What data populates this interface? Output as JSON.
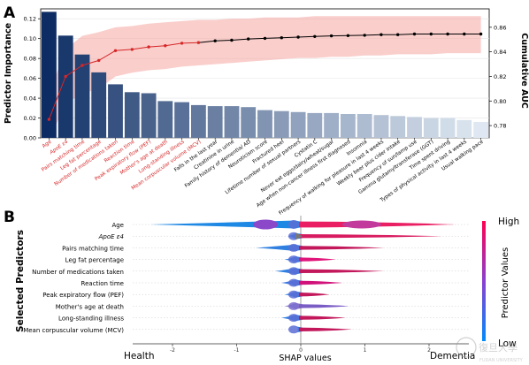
{
  "panel_a": {
    "label": "A",
    "ylabel_left": "Predictor Importance",
    "ylabel_right": "Cumulative AUC"
  },
  "panel_b": {
    "label": "B",
    "ylabel": "Selected Predictors",
    "xlabel": "SHAP values",
    "left_label": "Health",
    "right_label": "Dementia",
    "colorbar_label": "Predictor Values",
    "colorbar_high": "High",
    "colorbar_low": "Low"
  },
  "watermark": {
    "text_cn": "復旦大學",
    "text_en": "FUDAN UNIVERSITY"
  },
  "chart_data": [
    {
      "type": "bar",
      "panel": "A",
      "ylabel": "Predictor Importance",
      "ylim": [
        0,
        0.13
      ],
      "yticks": [
        0.0,
        0.02,
        0.04,
        0.06,
        0.08,
        0.1,
        0.12
      ],
      "ytick_labels": [
        "0.00",
        "0.02",
        "0.04",
        "0.06",
        "0.08",
        "0.10",
        "0.12"
      ],
      "grid": true,
      "categories": [
        "Age",
        "ApoE ε4",
        "Pairs matching time",
        "Leg fat percentage",
        "Number of medications taken",
        "Reaction time",
        "Peak expiratory flow (PEF)",
        "Mother's age at death",
        "Long-standing illness",
        "Mean corpuscular volume (MCV)",
        "Falls in the last year",
        "Creatinine in urine",
        "Family history of dementia/ AD",
        "Neuroticism score",
        "Fractured heel",
        "Lifetime number of sexual partners",
        "Cystatin C",
        "Never eat eggs/dairy/wheat/sugar",
        "Age when non-cancer illness first diagnosed",
        "Insomnia",
        "Frequency of walking for pleasure in last 4 weeks",
        "Weekly beer plus cider intake",
        "Frequency of sun/lamp use",
        "Gamma glutamyltransferase (GGT)",
        "Time spent driving",
        "Types of physical activity in last 4 weeks",
        "Usual walking pace"
      ],
      "highlighted_count": 10,
      "highlight_color": "#d62728",
      "values": [
        0.127,
        0.103,
        0.084,
        0.066,
        0.054,
        0.046,
        0.045,
        0.037,
        0.036,
        0.033,
        0.032,
        0.032,
        0.031,
        0.028,
        0.027,
        0.026,
        0.025,
        0.025,
        0.024,
        0.024,
        0.023,
        0.022,
        0.021,
        0.02,
        0.02,
        0.018,
        0.016
      ],
      "bar_color_dark": "#0c2c63",
      "bar_color_light": "#dfe8f2",
      "overlay": {
        "type": "line",
        "name": "Cumulative AUC",
        "axis": "right",
        "ylim": [
          0.77,
          0.875
        ],
        "yticks": [
          0.78,
          0.8,
          0.82,
          0.84,
          0.86
        ],
        "ytick_labels": [
          "0.78",
          "0.80",
          "0.82",
          "0.84",
          "0.86"
        ],
        "values": [
          0.785,
          0.82,
          0.829,
          0.833,
          0.841,
          0.842,
          0.844,
          0.845,
          0.847,
          0.8475,
          0.849,
          0.8495,
          0.8505,
          0.851,
          0.8515,
          0.852,
          0.8525,
          0.853,
          0.8532,
          0.8535,
          0.854,
          0.854,
          0.8545,
          0.8545,
          0.8545,
          0.8545,
          0.8545
        ],
        "upper": [
          0.806,
          0.842,
          0.853,
          0.856,
          0.86,
          0.861,
          0.863,
          0.864,
          0.865,
          0.866,
          0.866,
          0.867,
          0.867,
          0.868,
          0.868,
          0.868,
          0.869,
          0.869,
          0.869,
          0.869,
          0.869,
          0.869,
          0.869,
          0.869,
          0.869,
          0.869,
          0.869
        ],
        "lower": [
          0.768,
          0.798,
          0.806,
          0.81,
          0.82,
          0.823,
          0.825,
          0.826,
          0.828,
          0.829,
          0.83,
          0.831,
          0.832,
          0.833,
          0.834,
          0.835,
          0.835,
          0.836,
          0.836,
          0.837,
          0.837,
          0.838,
          0.838,
          0.838,
          0.839,
          0.839,
          0.839
        ],
        "line_color_highlighted": "#d62728",
        "line_color_rest": "#000000",
        "band_color": "#f4a6a0"
      }
    },
    {
      "type": "scatter",
      "panel": "B",
      "subtype": "shap_beeswarm",
      "xlabel": "SHAP values",
      "ylabel": "Selected Predictors",
      "xlim": [
        -2.5,
        2.55
      ],
      "xticks": [
        -2,
        -1,
        0,
        1,
        2
      ],
      "xtick_labels": [
        "-2",
        "-1",
        "0",
        "1",
        "2"
      ],
      "categories": [
        "Age",
        "ApoE ε4",
        "Pairs matching time",
        "Leg fat percentage",
        "Number of medications taken",
        "Reaction time",
        "Peak expiratory flow (PEF)",
        "Mother's age at death",
        "Long-standing illness",
        "Mean corpuscular volume (MCV)"
      ],
      "series": [
        {
          "name": "Age",
          "min": -2.35,
          "max": 2.4,
          "neg_color": "#1e88e5",
          "pos_color": "#e91e63"
        },
        {
          "name": "ApoE ε4",
          "min": -0.2,
          "max": 2.2,
          "neg_color": "#1e88e5",
          "pos_color": "#d81b60"
        },
        {
          "name": "Pairs matching time",
          "min": -0.7,
          "max": 1.3,
          "neg_color": "#2f7fe0",
          "pos_color": "#c2185b"
        },
        {
          "name": "Leg fat percentage",
          "min": -0.25,
          "max": 0.55,
          "neg_color": "#2f7fe0",
          "pos_color": "#e0157a"
        },
        {
          "name": "Number of medications taken",
          "min": -0.4,
          "max": 1.3,
          "neg_color": "#2f7fe0",
          "pos_color": "#c2185b"
        },
        {
          "name": "Reaction time",
          "min": -0.3,
          "max": 0.65,
          "neg_color": "#3d78df",
          "pos_color": "#d0127a"
        },
        {
          "name": "Peak expiratory flow (PEF)",
          "min": -0.25,
          "max": 0.45,
          "neg_color": "#2f7fe0",
          "pos_color": "#c2185b"
        },
        {
          "name": "Mother's age at death",
          "min": -0.25,
          "max": 0.75,
          "neg_color": "#8e79c4",
          "pos_color": "#7a5cc5"
        },
        {
          "name": "Long-standing illness",
          "min": -0.3,
          "max": 0.7,
          "neg_color": "#2f7fe0",
          "pos_color": "#c2185b"
        },
        {
          "name": "Mean corpuscular volume (MCV)",
          "min": -0.05,
          "max": 0.8,
          "neg_color": "#2f7fe0",
          "pos_color": "#c2185b"
        }
      ],
      "colorbar": {
        "high_color": "#ff0052",
        "low_color": "#008bfb"
      }
    }
  ]
}
